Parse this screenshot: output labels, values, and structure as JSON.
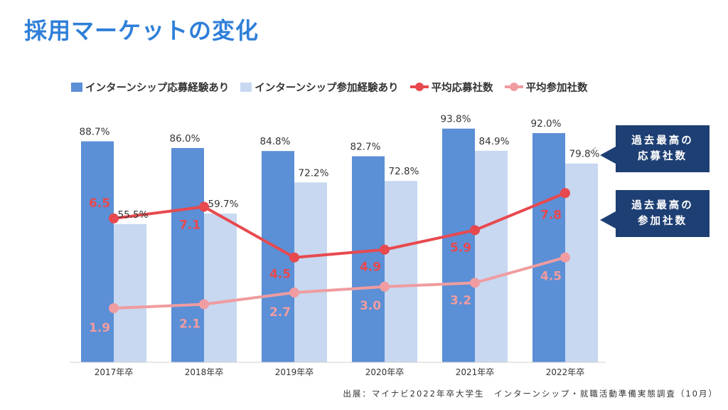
{
  "title": "採用マーケットの変化",
  "legend": {
    "apply": "インターンシップ応募経験あり",
    "join": "インターンシップ参加経験あり",
    "avg_apply": "平均応募社数",
    "avg_join": "平均参加社数"
  },
  "colors": {
    "apply_bar": "#5b8fd6",
    "join_bar": "#c7d8f0",
    "avg_apply_line": "#e8494e",
    "avg_join_line": "#f09ca0",
    "callout_bg": "#1e3f73",
    "title": "#2f7fd8"
  },
  "callouts": {
    "apply": {
      "line1": "過去最高の",
      "line2": "応募社数"
    },
    "join": {
      "line1": "過去最高の",
      "line2": "参加社数"
    }
  },
  "source": "出展：マイナビ2022年卒大学生　インターンシップ・就職活動準備実態調査（10月）",
  "chart_data": {
    "type": "bar",
    "categories": [
      "2017年卒",
      "2018年卒",
      "2019年卒",
      "2020年卒",
      "2021年卒",
      "2022年卒"
    ],
    "series": [
      {
        "name": "インターンシップ応募経験あり",
        "type": "bar",
        "unit": "%",
        "values": [
          88.7,
          86.0,
          84.8,
          82.7,
          93.8,
          92.0
        ],
        "labels": [
          "88.7%",
          "86.0%",
          "84.8%",
          "82.7%",
          "93.8%",
          "92.0%"
        ]
      },
      {
        "name": "インターンシップ参加経験あり",
        "type": "bar",
        "unit": "%",
        "values": [
          55.5,
          59.7,
          72.2,
          72.8,
          84.9,
          79.8
        ],
        "labels": [
          "55.5%",
          "59.7%",
          "72.2%",
          "72.8%",
          "84.9%",
          "79.8%"
        ]
      },
      {
        "name": "平均応募社数",
        "type": "line",
        "values": [
          6.5,
          7.1,
          4.5,
          4.9,
          5.9,
          7.8
        ],
        "labels": [
          "6.5",
          "7.1",
          "4.5",
          "4.9",
          "5.9",
          "7.8"
        ]
      },
      {
        "name": "平均参加社数",
        "type": "line",
        "values": [
          1.9,
          2.1,
          2.7,
          3.0,
          3.2,
          4.5
        ],
        "labels": [
          "1.9",
          "2.1",
          "2.7",
          "3.0",
          "3.2",
          "4.5"
        ]
      }
    ],
    "ylim_percent": [
      0,
      100
    ],
    "ylim_count": [
      0,
      10
    ],
    "grid": false,
    "legend": "top"
  }
}
